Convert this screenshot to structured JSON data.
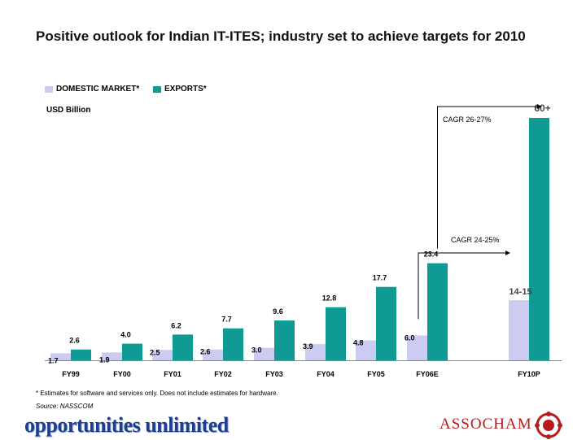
{
  "title": "Positive outlook for Indian IT-ITES; industry set to achieve targets for 2010",
  "unit_label": "USD Billion",
  "footnote": "* Estimates for software and services only. Does not include estimates for hardware.",
  "source": "Source: NASSCOM",
  "brand_text": "opportunities unlimited",
  "logo_text": "ASSOCHAM",
  "colors": {
    "domestic": "#ccccf2",
    "exports": "#0f9a94",
    "logo": "#b71c1c"
  },
  "chart_data": {
    "type": "bar",
    "categories": [
      "FY99",
      "FY00",
      "FY01",
      "FY02",
      "FY03",
      "FY04",
      "FY05",
      "FY06E",
      "FY10P"
    ],
    "series": [
      {
        "name": "DOMESTIC MARKET*",
        "values": [
          1.7,
          1.9,
          2.5,
          2.6,
          3.0,
          3.9,
          4.8,
          6.0,
          14.5
        ],
        "labels": [
          "1.7",
          "1.9",
          "2.5",
          "2.6",
          "3.0",
          "3.9",
          "4.8",
          "6.0",
          "14-15"
        ]
      },
      {
        "name": "EXPORTS*",
        "values": [
          2.6,
          4.0,
          6.2,
          7.7,
          9.6,
          12.8,
          17.7,
          23.4,
          60
        ],
        "labels": [
          "2.6",
          "4.0",
          "6.2",
          "7.7",
          "9.6",
          "12.8",
          "17.7",
          "23.4",
          "60+"
        ]
      }
    ],
    "annotations": [
      "CAGR 26-27%",
      "CAGR 24-25%"
    ],
    "ylabel": "USD Billion",
    "grid": false,
    "legend_position": "top-left"
  }
}
